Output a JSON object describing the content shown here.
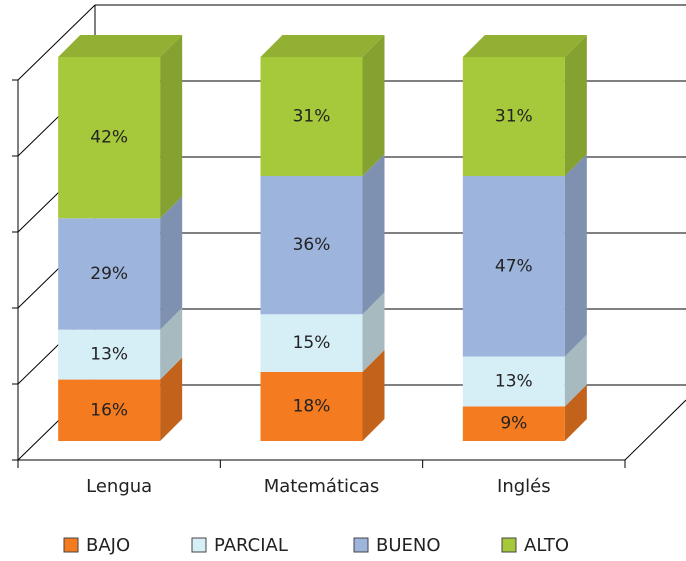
{
  "chart_data": {
    "type": "bar3d_stacked",
    "categories": [
      "Lengua",
      "Matemáticas",
      "Inglés"
    ],
    "series": [
      {
        "name": "BAJO",
        "color": "#f47b20",
        "values": [
          16,
          18,
          9
        ],
        "value_labels": [
          "16%",
          "18%",
          "9%"
        ]
      },
      {
        "name": "PARCIAL",
        "color": "#d6eef6",
        "values": [
          13,
          15,
          13
        ],
        "value_labels": [
          "13%",
          "15%",
          "13%"
        ]
      },
      {
        "name": "BUENO",
        "color": "#9db5dd",
        "values": [
          29,
          36,
          47
        ],
        "value_labels": [
          "29%",
          "36%",
          "47%"
        ]
      },
      {
        "name": "ALTO",
        "color": "#a6c93b",
        "values": [
          42,
          31,
          31
        ],
        "value_labels": [
          "42%",
          "31%",
          "31%"
        ]
      }
    ],
    "ylim": [
      0,
      100
    ],
    "yticks": [
      0,
      20,
      40,
      60,
      80,
      100
    ],
    "grid": true,
    "legend": "bottom"
  }
}
